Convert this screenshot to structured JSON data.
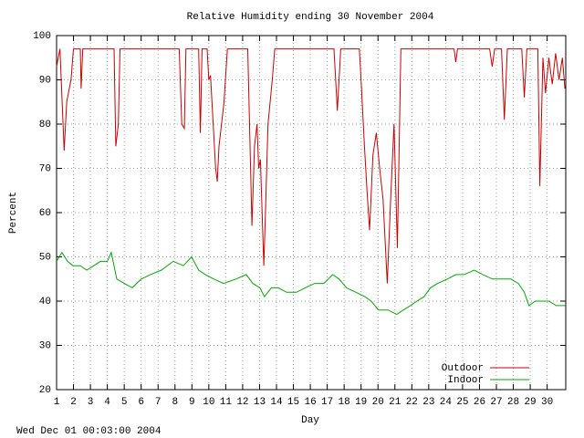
{
  "chart_data": {
    "type": "line",
    "title": "Relative Humidity ending 30 November 2004",
    "x_label": "Day",
    "y_label": "Percent",
    "footer": "Wed Dec 01 00:03:00 2004",
    "xlim": [
      1,
      31.1
    ],
    "ylim": [
      20,
      100
    ],
    "xticks": [
      1,
      2,
      3,
      4,
      5,
      6,
      7,
      8,
      9,
      10,
      11,
      12,
      13,
      14,
      15,
      16,
      17,
      18,
      19,
      20,
      21,
      22,
      23,
      24,
      25,
      26,
      27,
      28,
      29,
      30
    ],
    "yticks": [
      20,
      30,
      40,
      50,
      60,
      70,
      80,
      90,
      100
    ],
    "grid": true,
    "legend_position": "bottom-right",
    "series": [
      {
        "name": "Outdoor",
        "color": "#cc0000",
        "x": [
          1.0,
          1.2,
          1.45,
          1.6,
          1.85,
          2.0,
          2.4,
          2.45,
          2.55,
          4.4,
          4.5,
          4.65,
          4.75,
          8.25,
          8.4,
          8.55,
          8.65,
          9.4,
          9.5,
          9.6,
          9.9,
          10.0,
          10.1,
          10.4,
          10.5,
          10.6,
          10.9,
          11.1,
          12.3,
          12.55,
          12.7,
          12.85,
          12.95,
          13.05,
          13.25,
          13.35,
          13.5,
          13.75,
          13.9,
          17.4,
          17.6,
          17.8,
          18.9,
          19.0,
          19.2,
          19.35,
          19.5,
          19.7,
          19.9,
          20.1,
          20.3,
          20.55,
          20.75,
          20.95,
          21.15,
          21.35,
          24.5,
          24.6,
          24.7,
          26.6,
          26.75,
          26.9,
          27.3,
          27.47,
          27.65,
          28.5,
          28.65,
          28.8,
          29.45,
          29.57,
          29.75,
          29.9,
          30.1,
          30.3,
          30.5,
          30.7,
          30.9,
          31.05
        ],
        "values": [
          93,
          97,
          74,
          85,
          90,
          97,
          97,
          88,
          97,
          97,
          75,
          80,
          97,
          97,
          80,
          79,
          97,
          97,
          78,
          97,
          97,
          90,
          91,
          70,
          67,
          75,
          85,
          97,
          97,
          57,
          75,
          80,
          70,
          72,
          48,
          60,
          80,
          90,
          97,
          97,
          83,
          97,
          97,
          90,
          75,
          65,
          56,
          73,
          78,
          70,
          63,
          44,
          63,
          80,
          52,
          97,
          97,
          94,
          97,
          97,
          93,
          97,
          97,
          81,
          97,
          97,
          86,
          97,
          97,
          66,
          95,
          87,
          95,
          89,
          96,
          90,
          95,
          88
        ]
      },
      {
        "name": "Indoor",
        "color": "#00aa00",
        "x": [
          1.0,
          1.32,
          1.65,
          1.97,
          2.4,
          2.78,
          3.2,
          3.59,
          4.0,
          4.23,
          4.56,
          5.0,
          5.47,
          6.0,
          6.55,
          7.2,
          7.9,
          8.5,
          8.98,
          9.4,
          9.79,
          10.3,
          10.87,
          11.6,
          12.21,
          12.6,
          13.02,
          13.29,
          13.7,
          14.1,
          14.6,
          15.18,
          15.7,
          16.26,
          16.8,
          17.33,
          17.7,
          18.14,
          18.7,
          19.22,
          19.6,
          20.03,
          20.6,
          21.11,
          21.5,
          21.92,
          22.3,
          22.73,
          23.1,
          23.53,
          24.1,
          24.61,
          25.1,
          25.69,
          26.2,
          26.77,
          27.3,
          27.85,
          28.3,
          28.65,
          28.92,
          29.3,
          29.73,
          30.1,
          30.54,
          31.07
        ],
        "values": [
          49,
          51,
          49,
          48,
          48,
          47,
          48,
          49,
          49,
          51,
          45,
          44,
          43,
          45,
          46,
          47,
          49,
          48,
          50,
          47,
          46,
          45,
          44,
          45,
          46,
          44,
          43,
          41,
          43,
          43,
          42,
          42,
          43,
          44,
          44,
          46,
          45,
          43,
          42,
          41,
          40,
          38,
          38,
          37,
          38,
          39,
          40,
          41,
          43,
          44,
          45,
          46,
          46,
          47,
          46,
          45,
          45,
          45,
          44,
          42,
          39,
          40,
          40,
          40,
          39,
          39
        ]
      }
    ]
  }
}
